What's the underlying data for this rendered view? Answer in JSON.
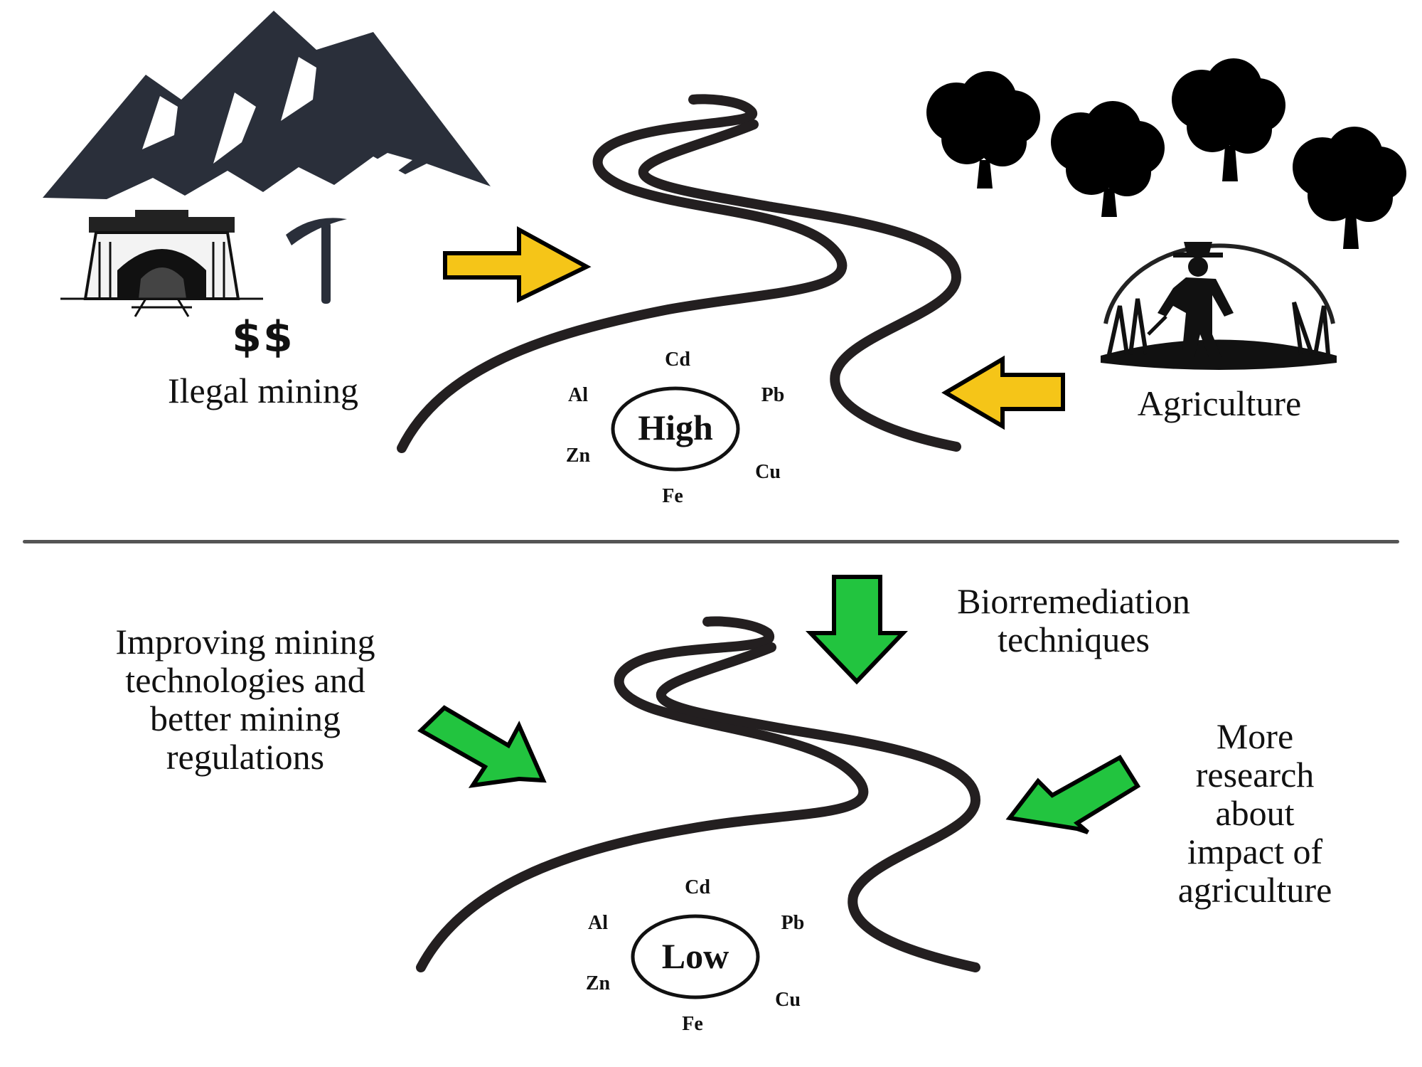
{
  "top_section": {
    "mining": {
      "dollar": "$$",
      "label": "Ilegal mining"
    },
    "agriculture": {
      "label": "Agriculture"
    },
    "river": {
      "level": "High",
      "metals": {
        "cd": "Cd",
        "pb": "Pb",
        "cu": "Cu",
        "fe": "Fe",
        "zn": "Zn",
        "al": "Al"
      }
    },
    "arrow_color": "#F5C518"
  },
  "bottom_section": {
    "bioremediation": "Biorremediation\ntechniques",
    "improving": "Improving mining\ntechnologies and\nbetter mining\nregulations",
    "research": "More\nresearch\nabout\nimpact of\nagriculture",
    "river": {
      "level": "Low",
      "metals": {
        "cd": "Cd",
        "pb": "Pb",
        "cu": "Cu",
        "fe": "Fe",
        "zn": "Zn",
        "al": "Al"
      }
    },
    "arrow_color": "#22C43F"
  },
  "icons": {
    "mountain": "mountain-icon",
    "mine": "mine-entrance-icon",
    "pickaxe": "pickaxe-icon",
    "trees": "tree-icon",
    "farmer": "farmer-icon",
    "river": "river-icon"
  },
  "colors": {
    "mountain": "#2A2F3A",
    "river": "#231F20",
    "outline": "#000000"
  }
}
